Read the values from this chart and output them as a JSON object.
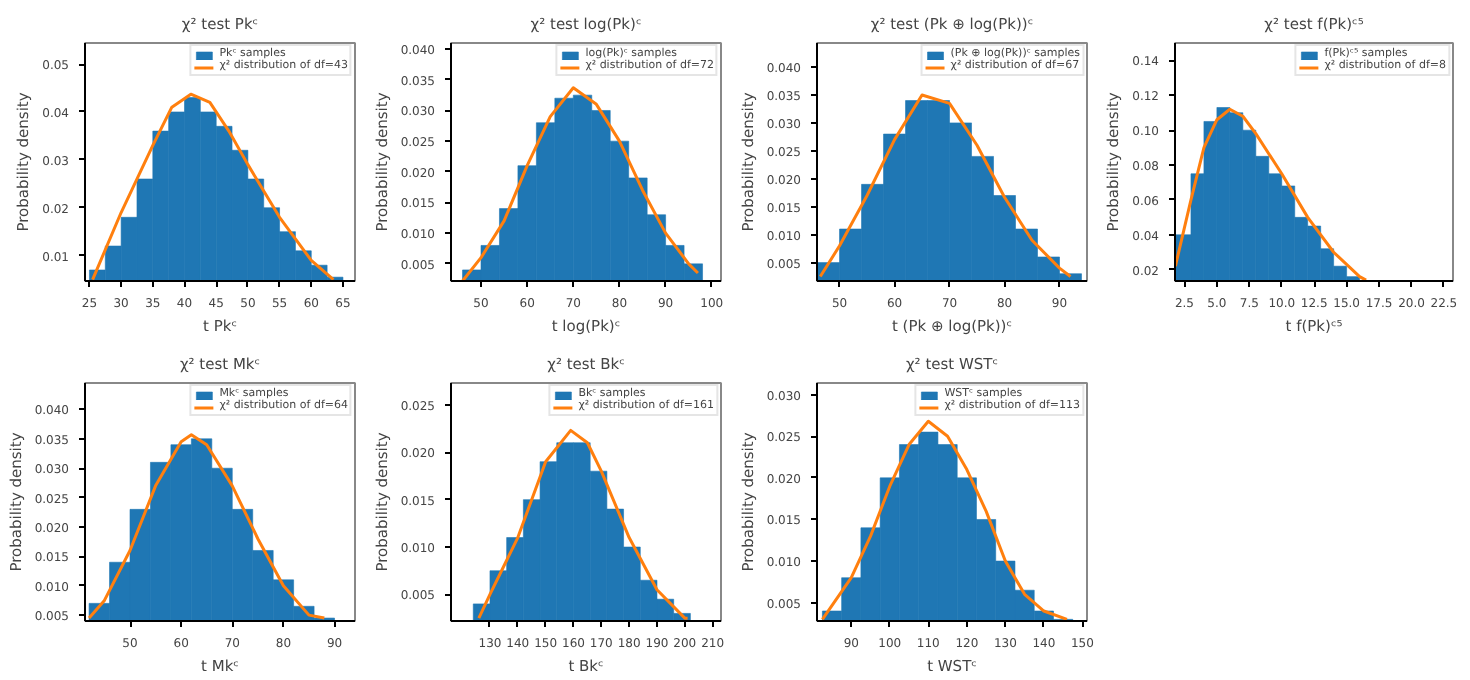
{
  "chart_data": [
    {
      "type": "histogram",
      "title": "χ² test Pkᶜ",
      "xlabel": "t Pkᶜ",
      "ylabel": "Probability density",
      "legend": "top right",
      "grid": false,
      "xlim": [
        24.3,
        66.9
      ],
      "ylim": [
        0.0047,
        0.0544
      ],
      "xticks": [
        25,
        30,
        35,
        40,
        45,
        50,
        55,
        60,
        65
      ],
      "yticks": [
        {
          "value": 0.01,
          "label": "0.01"
        },
        {
          "value": 0.02,
          "label": "0.02"
        },
        {
          "value": 0.03,
          "label": "0.03"
        },
        {
          "value": 0.04,
          "label": "0.04"
        },
        {
          "value": 0.05,
          "label": "0.05"
        }
      ],
      "series": [
        {
          "name": "Pkᶜ samples",
          "color": "#1f77b4",
          "bins": [
            25,
            27.5,
            30,
            32.5,
            35,
            37.5,
            40,
            42.5,
            45,
            47.5,
            50,
            52.5,
            55,
            57.5,
            60,
            62.5,
            65
          ],
          "values": [
            0.007,
            0.012,
            0.018,
            0.026,
            0.036,
            0.04,
            0.043,
            0.04,
            0.037,
            0.032,
            0.026,
            0.02,
            0.015,
            0.011,
            0.008,
            0.0055
          ]
        },
        {
          "name": "χ² distribution of df=43",
          "type": "line",
          "color": "#ff7f0e",
          "x": [
            25.5,
            30,
            35,
            38,
            41,
            44,
            47,
            50,
            55,
            60,
            63.5
          ],
          "values": [
            0.005,
            0.019,
            0.033,
            0.041,
            0.0437,
            0.042,
            0.036,
            0.029,
            0.018,
            0.009,
            0.005
          ]
        }
      ]
    },
    {
      "type": "histogram",
      "title": "χ² test log(Pk)ᶜ",
      "xlabel": "t log(Pk)ᶜ",
      "ylabel": "Probability density",
      "legend": "top right",
      "grid": false,
      "xlim": [
        43.5,
        102
      ],
      "ylim": [
        0.0022,
        0.041
      ],
      "xticks": [
        50,
        60,
        70,
        80,
        90,
        100
      ],
      "yticks": [
        {
          "value": 0.005,
          "label": "0.005"
        },
        {
          "value": 0.01,
          "label": "0.010"
        },
        {
          "value": 0.015,
          "label": "0.015"
        },
        {
          "value": 0.02,
          "label": "0.020"
        },
        {
          "value": 0.025,
          "label": "0.025"
        },
        {
          "value": 0.03,
          "label": "0.030"
        },
        {
          "value": 0.035,
          "label": "0.035"
        },
        {
          "value": 0.04,
          "label": "0.040"
        }
      ],
      "series": [
        {
          "name": "log(Pk)ᶜ samples",
          "color": "#1f77b4",
          "bins": [
            46,
            50,
            54,
            58,
            62,
            66,
            70,
            74,
            78,
            82,
            86,
            90,
            94,
            98
          ],
          "values": [
            0.004,
            0.008,
            0.014,
            0.021,
            0.028,
            0.032,
            0.0325,
            0.03,
            0.025,
            0.019,
            0.013,
            0.008,
            0.005
          ]
        },
        {
          "name": "χ² distribution of df=72",
          "type": "line",
          "color": "#ff7f0e",
          "x": [
            46,
            50,
            55,
            60,
            65,
            70,
            75,
            80,
            85,
            90,
            95,
            97
          ],
          "values": [
            0.0022,
            0.006,
            0.012,
            0.021,
            0.029,
            0.0337,
            0.031,
            0.025,
            0.017,
            0.01,
            0.005,
            0.0035
          ]
        }
      ]
    },
    {
      "type": "histogram",
      "title": "χ² test (Pk ⊕ log(Pk))ᶜ",
      "xlabel": "t (Pk ⊕ log(Pk))ᶜ",
      "ylabel": "Probability density",
      "legend": "top right",
      "grid": false,
      "xlim": [
        45.9,
        95
      ],
      "ylim": [
        0.0017,
        0.0443
      ],
      "xticks": [
        50,
        60,
        70,
        80,
        90
      ],
      "yticks": [
        {
          "value": 0.005,
          "label": "0.005"
        },
        {
          "value": 0.01,
          "label": "0.010"
        },
        {
          "value": 0.015,
          "label": "0.015"
        },
        {
          "value": 0.02,
          "label": "0.020"
        },
        {
          "value": 0.025,
          "label": "0.025"
        },
        {
          "value": 0.03,
          "label": "0.030"
        },
        {
          "value": 0.035,
          "label": "0.035"
        },
        {
          "value": 0.04,
          "label": "0.040"
        }
      ],
      "series": [
        {
          "name": "(Pk ⊕ log(Pk))ᶜ samples",
          "color": "#1f77b4",
          "bins": [
            46,
            50,
            54,
            58,
            62,
            66,
            70,
            74,
            78,
            82,
            86,
            90,
            94
          ],
          "values": [
            0.005,
            0.011,
            0.019,
            0.028,
            0.034,
            0.034,
            0.03,
            0.024,
            0.017,
            0.011,
            0.006,
            0.003
          ]
        },
        {
          "name": "χ² distribution of df=67",
          "type": "line",
          "color": "#ff7f0e",
          "x": [
            46.5,
            50,
            55,
            60,
            65,
            70,
            75,
            80,
            85,
            90,
            92
          ],
          "values": [
            0.0025,
            0.008,
            0.017,
            0.027,
            0.035,
            0.0335,
            0.026,
            0.0167,
            0.009,
            0.004,
            0.0025
          ]
        }
      ]
    },
    {
      "type": "histogram",
      "title": "χ² test f(Pk)ᶜ⁵",
      "xlabel": "t f(Pk)ᶜ⁵",
      "ylabel": "Probability density",
      "legend": "top right",
      "grid": false,
      "xlim": [
        1.77,
        23.2
      ],
      "ylim": [
        0.0135,
        0.15
      ],
      "xticks": [
        {
          "value": 2.5,
          "label": "2.5"
        },
        {
          "value": 5,
          "label": "5.0"
        },
        {
          "value": 7.5,
          "label": "7.5"
        },
        {
          "value": 10,
          "label": "10.0"
        },
        {
          "value": 12.5,
          "label": "12.5"
        },
        {
          "value": 15,
          "label": "15.0"
        },
        {
          "value": 17.5,
          "label": "17.5"
        },
        {
          "value": 20,
          "label": "20.0"
        },
        {
          "value": 22.5,
          "label": "22.5"
        }
      ],
      "yticks": [
        0.02,
        0.04,
        0.06,
        0.08,
        {
          "value": 0.1,
          "label": "0.10"
        },
        0.12,
        0.14
      ],
      "series": [
        {
          "name": "f(Pk)ᶜ⁵ samples",
          "color": "#1f77b4",
          "bins": [
            1.8,
            3,
            4,
            5,
            6,
            7,
            8,
            9,
            10,
            11,
            12,
            13,
            14,
            15,
            16
          ],
          "values": [
            0.04,
            0.075,
            0.105,
            0.113,
            0.11,
            0.1,
            0.085,
            0.075,
            0.068,
            0.05,
            0.045,
            0.032,
            0.022,
            0.016
          ]
        },
        {
          "name": "χ² distribution of df=8",
          "type": "line",
          "color": "#ff7f0e",
          "x": [
            1.8,
            3,
            4,
            5,
            6,
            7,
            8,
            10,
            12,
            14,
            16,
            16.5
          ],
          "values": [
            0.022,
            0.06,
            0.09,
            0.106,
            0.112,
            0.108,
            0.098,
            0.075,
            0.05,
            0.03,
            0.016,
            0.014
          ]
        }
      ]
    },
    {
      "type": "histogram",
      "title": "χ² test Mkᶜ",
      "xlabel": "t Mkᶜ",
      "ylabel": "Probability density",
      "legend": "top right",
      "grid": false,
      "xlim": [
        41.2,
        94
      ],
      "ylim": [
        0.004,
        0.0445
      ],
      "xticks": [
        50,
        60,
        70,
        80,
        90
      ],
      "yticks": [
        {
          "value": 0.005,
          "label": "0.005"
        },
        {
          "value": 0.01,
          "label": "0.010"
        },
        {
          "value": 0.015,
          "label": "0.015"
        },
        {
          "value": 0.02,
          "label": "0.020"
        },
        {
          "value": 0.025,
          "label": "0.025"
        },
        {
          "value": 0.03,
          "label": "0.030"
        },
        {
          "value": 0.035,
          "label": "0.035"
        },
        {
          "value": 0.04,
          "label": "0.040"
        }
      ],
      "series": [
        {
          "name": "Mkᶜ samples",
          "color": "#1f77b4",
          "bins": [
            42,
            46,
            50,
            54,
            58,
            62,
            66,
            70,
            74,
            78,
            82,
            86,
            90
          ],
          "values": [
            0.007,
            0.014,
            0.023,
            0.031,
            0.034,
            0.035,
            0.03,
            0.023,
            0.016,
            0.011,
            0.0065,
            0.0045
          ]
        },
        {
          "name": "χ² distribution of df=64",
          "type": "line",
          "color": "#ff7f0e",
          "x": [
            42,
            45,
            50,
            55,
            60,
            62,
            65,
            70,
            75,
            80,
            85,
            88
          ],
          "values": [
            0.0045,
            0.0075,
            0.016,
            0.027,
            0.0345,
            0.0357,
            0.034,
            0.027,
            0.018,
            0.01,
            0.005,
            0.0045
          ]
        }
      ]
    },
    {
      "type": "histogram",
      "title": "χ² test Bkᶜ",
      "xlabel": "t Bkᶜ",
      "ylabel": "Probability density",
      "legend": "top right",
      "grid": false,
      "xlim": [
        116,
        213
      ],
      "ylim": [
        0.0022,
        0.0273
      ],
      "xticks": [
        130,
        140,
        150,
        160,
        170,
        180,
        190,
        200,
        210
      ],
      "yticks": [
        {
          "value": 0.005,
          "label": "0.005"
        },
        {
          "value": 0.01,
          "label": "0.010"
        },
        {
          "value": 0.015,
          "label": "0.015"
        },
        {
          "value": 0.02,
          "label": "0.020"
        },
        {
          "value": 0.025,
          "label": "0.025"
        }
      ],
      "series": [
        {
          "name": "Bkᶜ samples",
          "color": "#1f77b4",
          "bins": [
            124,
            130,
            136,
            142,
            148,
            154,
            160,
            166,
            172,
            178,
            184,
            190,
            196,
            202
          ],
          "values": [
            0.004,
            0.0075,
            0.011,
            0.015,
            0.019,
            0.021,
            0.021,
            0.018,
            0.014,
            0.01,
            0.0065,
            0.0045,
            0.003
          ]
        },
        {
          "name": "χ² distribution of df=161",
          "type": "line",
          "color": "#ff7f0e",
          "x": [
            126,
            130,
            140,
            150,
            159,
            165,
            170,
            180,
            190,
            200,
            201
          ],
          "values": [
            0.0025,
            0.005,
            0.011,
            0.019,
            0.0223,
            0.021,
            0.018,
            0.011,
            0.0055,
            0.0025,
            0.0025
          ]
        }
      ]
    },
    {
      "type": "histogram",
      "title": "χ² test WSTᶜ",
      "xlabel": "t WSTᶜ",
      "ylabel": "Probability density",
      "legend": "top right",
      "grid": false,
      "xlim": [
        81.1,
        151.2
      ],
      "ylim": [
        0.0028,
        0.0314
      ],
      "xticks": [
        90,
        100,
        110,
        120,
        130,
        140,
        150
      ],
      "yticks": [
        {
          "value": 0.005,
          "label": "0.005"
        },
        {
          "value": 0.01,
          "label": "0.010"
        },
        {
          "value": 0.015,
          "label": "0.015"
        },
        {
          "value": 0.02,
          "label": "0.020"
        },
        {
          "value": 0.025,
          "label": "0.025"
        },
        {
          "value": 0.03,
          "label": "0.030"
        }
      ],
      "series": [
        {
          "name": "WSTᶜ samples",
          "color": "#1f77b4",
          "bins": [
            82.5,
            87.5,
            92.5,
            97.5,
            102.5,
            107.5,
            112.5,
            117.5,
            122.5,
            127.5,
            132.5,
            137.5,
            142.5,
            147.5
          ],
          "values": [
            0.004,
            0.008,
            0.014,
            0.02,
            0.024,
            0.0255,
            0.024,
            0.02,
            0.015,
            0.01,
            0.0065,
            0.004,
            0.003
          ]
        },
        {
          "name": "χ² distribution of df=113",
          "type": "line",
          "color": "#ff7f0e",
          "x": [
            82.5,
            90,
            95,
            100,
            105,
            110,
            115,
            120,
            125,
            130,
            135,
            140,
            146
          ],
          "values": [
            0.003,
            0.008,
            0.013,
            0.019,
            0.024,
            0.0268,
            0.025,
            0.021,
            0.016,
            0.01,
            0.006,
            0.004,
            0.003
          ]
        }
      ]
    }
  ]
}
